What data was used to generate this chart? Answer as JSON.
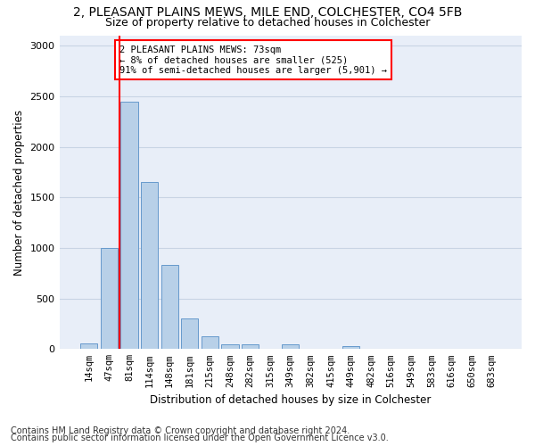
{
  "title1": "2, PLEASANT PLAINS MEWS, MILE END, COLCHESTER, CO4 5FB",
  "title2": "Size of property relative to detached houses in Colchester",
  "xlabel": "Distribution of detached houses by size in Colchester",
  "ylabel": "Number of detached properties",
  "footnote1": "Contains HM Land Registry data © Crown copyright and database right 2024.",
  "footnote2": "Contains public sector information licensed under the Open Government Licence v3.0.",
  "annotation_title": "2 PLEASANT PLAINS MEWS: 73sqm",
  "annotation_line1": "← 8% of detached houses are smaller (525)",
  "annotation_line2": "91% of semi-detached houses are larger (5,901) →",
  "categories": [
    "14sqm",
    "47sqm",
    "81sqm",
    "114sqm",
    "148sqm",
    "181sqm",
    "215sqm",
    "248sqm",
    "282sqm",
    "315sqm",
    "349sqm",
    "382sqm",
    "415sqm",
    "449sqm",
    "482sqm",
    "516sqm",
    "549sqm",
    "583sqm",
    "616sqm",
    "650sqm",
    "683sqm"
  ],
  "bar_heights": [
    55,
    1000,
    2450,
    1650,
    830,
    305,
    130,
    50,
    45,
    0,
    45,
    0,
    0,
    30,
    0,
    0,
    0,
    0,
    0,
    0,
    0
  ],
  "bar_color": "#b8d0e8",
  "bar_edge_color": "#6699cc",
  "vline_color": "red",
  "vline_x_index": 2,
  "annotation_box_edgecolor": "red",
  "annotation_bg": "white",
  "ylim": [
    0,
    3100
  ],
  "yticks": [
    0,
    500,
    1000,
    1500,
    2000,
    2500,
    3000
  ],
  "grid_color": "#c8d4e4",
  "bg_color": "#e8eef8",
  "title1_fontsize": 10,
  "title2_fontsize": 9,
  "xlabel_fontsize": 8.5,
  "ylabel_fontsize": 8.5,
  "footnote_fontsize": 7,
  "tick_fontsize": 7.5,
  "annotation_fontsize": 7.5
}
